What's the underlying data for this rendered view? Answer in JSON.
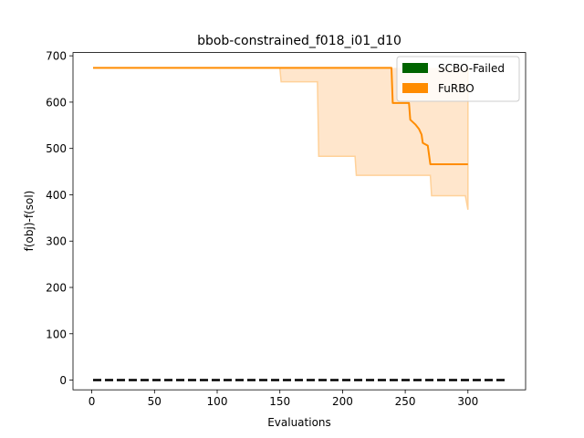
{
  "chart_data": {
    "type": "line",
    "title": "bbob-constrained_f018_i01_d10",
    "xlabel": "Evaluations",
    "ylabel": "f(obj)-f(sol)",
    "xlim": [
      -15,
      346
    ],
    "ylim": [
      -21,
      707
    ],
    "xticks": [
      0,
      50,
      100,
      150,
      200,
      250,
      300
    ],
    "yticks": [
      0,
      100,
      200,
      300,
      400,
      500,
      600,
      700
    ],
    "grid": false,
    "legend_position": "top-right",
    "legend": [
      {
        "name": "SCBO-Failed",
        "color": "#006400"
      },
      {
        "name": "FuRBO",
        "color": "#ff8c00"
      }
    ],
    "series": [
      {
        "name": "FuRBO",
        "color": "#ff8c00",
        "points": [
          [
            1,
            674
          ],
          [
            239,
            674
          ],
          [
            240,
            598
          ],
          [
            253,
            598
          ],
          [
            254,
            562
          ],
          [
            258,
            552
          ],
          [
            261,
            542
          ],
          [
            263,
            530
          ],
          [
            264,
            512
          ],
          [
            268,
            506
          ],
          [
            270,
            466
          ],
          [
            300,
            466
          ]
        ]
      }
    ],
    "band": {
      "series": "FuRBO",
      "color": "#ffe6cc",
      "edge_color": "#ffd199",
      "upper": [
        [
          1,
          674
        ],
        [
          300,
          674
        ]
      ],
      "lower": [
        [
          1,
          674
        ],
        [
          150,
          674
        ],
        [
          151,
          644
        ],
        [
          180,
          644
        ],
        [
          181,
          483
        ],
        [
          210,
          483
        ],
        [
          211,
          442
        ],
        [
          270,
          442
        ],
        [
          271,
          398
        ],
        [
          298,
          398
        ],
        [
          300,
          368
        ]
      ]
    },
    "reference_line": {
      "y": 0,
      "x": [
        1,
        330
      ],
      "color": "#000000",
      "style": "dashed"
    }
  }
}
